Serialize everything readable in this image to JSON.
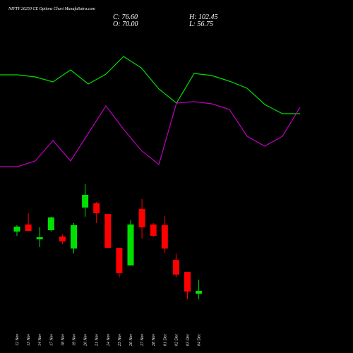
{
  "header": {
    "title": "NIFTY 26250  CE Options  Chart MunafaSutra.com",
    "close": "C: 76.60",
    "open": "O: 70.00",
    "high": "H: 102.45",
    "low": "L: 56.75"
  },
  "chart_data": [
    {
      "type": "candlestick",
      "up_color": "#00e000",
      "down_color": "#ff0000",
      "ylim": [
        -67.1,
        749.4
      ],
      "categories": [
        "12 Nov",
        "13 Nov",
        "14 Nov",
        "17 Nov",
        "18 Nov",
        "19 Nov",
        "20 Nov",
        "21 Nov",
        "24 Nov",
        "25 Nov",
        "26 Nov",
        "27 Nov",
        "28 Nov",
        "01 Dec",
        "02 Dec",
        "03 Dec",
        "04 Dec"
      ],
      "open": [
        213.8,
        230.1,
        195.8,
        217.0,
        202.3,
        174.6,
        269.3,
        279.1,
        254.6,
        176.2,
        135.4,
        266.0,
        230.1,
        228.5,
        148.5,
        120.7,
        70.0
      ],
      "high": [
        228.5,
        256.2,
        223.6,
        248.1,
        207.2,
        233.4,
        323.2,
        282.4,
        254.6,
        176.2,
        239.9,
        288.9,
        233.4,
        249.7,
        163.1,
        120.7,
        102.45
      ],
      "low": [
        204.0,
        215.4,
        177.9,
        213.8,
        184.4,
        163.1,
        248.1,
        233.4,
        176.2,
        107.6,
        135.4,
        197.4,
        200.7,
        164.8,
        107.6,
        57.0,
        56.75
      ],
      "close": [
        225.2,
        215.4,
        200.7,
        246.4,
        190.9,
        228.5,
        298.7,
        256.2,
        176.2,
        117.4,
        230.1,
        223.6,
        204.0,
        174.6,
        114.2,
        75.0,
        76.6
      ]
    },
    {
      "type": "line",
      "ylim": [
        0,
        500
      ],
      "series": [
        {
          "color": "#00e000",
          "values": [
            394,
            394,
            391,
            384,
            401,
            381,
            395,
            420,
            404,
            374,
            354,
            396,
            393,
            385,
            375,
            352,
            339,
            339
          ]
        },
        {
          "color": "#c000c0",
          "values": [
            264,
            264,
            272,
            301,
            272,
            311,
            350,
            317,
            287,
            267,
            354,
            356,
            353,
            345,
            307,
            293,
            307,
            348
          ]
        }
      ]
    }
  ]
}
